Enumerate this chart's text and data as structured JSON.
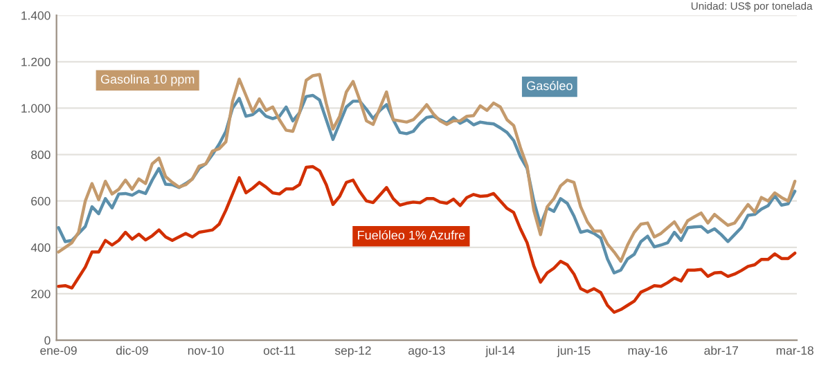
{
  "chart_data": {
    "type": "line",
    "annotations": [
      "Unidad: US$ por tonelada"
    ],
    "categories": [
      "ene-09",
      null,
      null,
      null,
      null,
      null,
      null,
      null,
      null,
      null,
      null,
      "dic-09",
      null,
      null,
      null,
      null,
      null,
      null,
      null,
      null,
      null,
      null,
      "nov-10",
      null,
      null,
      null,
      null,
      null,
      null,
      null,
      null,
      null,
      null,
      "oct-11",
      null,
      null,
      null,
      null,
      null,
      null,
      null,
      null,
      null,
      null,
      "sep-12",
      null,
      null,
      null,
      null,
      null,
      null,
      null,
      null,
      null,
      null,
      "ago-13",
      null,
      null,
      null,
      null,
      null,
      null,
      null,
      null,
      null,
      null,
      "jul-14",
      null,
      null,
      null,
      null,
      null,
      null,
      null,
      null,
      null,
      null,
      "jun-15",
      null,
      null,
      null,
      null,
      null,
      null,
      null,
      null,
      null,
      null,
      "may-16",
      null,
      null,
      null,
      null,
      null,
      null,
      null,
      null,
      null,
      null,
      "abr-17",
      null,
      null,
      null,
      null,
      null,
      null,
      null,
      null,
      null,
      null,
      "mar-18"
    ],
    "series": [
      {
        "name": "Gasolina 10 ppm",
        "color": "#c49a6c",
        "values": [
          380,
          400,
          420,
          465,
          600,
          675,
          605,
          685,
          630,
          650,
          690,
          650,
          695,
          675,
          760,
          785,
          705,
          680,
          660,
          670,
          695,
          750,
          760,
          815,
          825,
          855,
          1030,
          1125,
          1055,
          985,
          1040,
          990,
          1005,
          950,
          905,
          900,
          980,
          1120,
          1140,
          1145,
          1020,
          910,
          965,
          1070,
          1115,
          1035,
          945,
          930,
          1000,
          1070,
          950,
          945,
          940,
          950,
          980,
          1015,
          975,
          945,
          930,
          945,
          945,
          965,
          968,
          1010,
          990,
          1022,
          1005,
          950,
          925,
          830,
          750,
          560,
          455,
          575,
          610,
          665,
          690,
          680,
          575,
          510,
          470,
          470,
          415,
          380,
          340,
          410,
          465,
          500,
          505,
          445,
          460,
          485,
          510,
          465,
          515,
          532,
          548,
          505,
          542,
          518,
          495,
          505,
          545,
          585,
          552,
          615,
          600,
          635,
          615,
          600,
          685
        ]
      },
      {
        "name": "Gasóleo",
        "color": "#5b8fab",
        "values": [
          485,
          425,
          430,
          460,
          490,
          575,
          545,
          610,
          570,
          630,
          632,
          625,
          642,
          632,
          690,
          740,
          672,
          670,
          658,
          675,
          695,
          740,
          760,
          800,
          845,
          900,
          1000,
          1042,
          965,
          972,
          995,
          965,
          955,
          965,
          1005,
          945,
          980,
          1050,
          1055,
          1035,
          950,
          865,
          935,
          1005,
          1030,
          1030,
          995,
          955,
          990,
          1015,
          950,
          895,
          890,
          900,
          935,
          960,
          965,
          950,
          935,
          960,
          935,
          950,
          928,
          940,
          935,
          932,
          915,
          895,
          860,
          790,
          740,
          600,
          495,
          570,
          555,
          610,
          590,
          535,
          465,
          472,
          460,
          440,
          350,
          290,
          302,
          350,
          370,
          425,
          448,
          402,
          410,
          420,
          465,
          430,
          485,
          488,
          490,
          465,
          480,
          455,
          425,
          455,
          485,
          538,
          542,
          565,
          580,
          622,
          582,
          588,
          642
        ]
      },
      {
        "name": "Fuelóleo 1% Azufre",
        "color": "#d22f00",
        "values": [
          232,
          235,
          225,
          270,
          315,
          380,
          380,
          430,
          410,
          430,
          465,
          435,
          457,
          432,
          450,
          475,
          445,
          430,
          445,
          460,
          445,
          465,
          470,
          475,
          500,
          560,
          630,
          700,
          635,
          655,
          680,
          660,
          635,
          630,
          652,
          652,
          670,
          745,
          748,
          730,
          670,
          585,
          620,
          680,
          690,
          640,
          600,
          593,
          625,
          658,
          610,
          582,
          590,
          595,
          592,
          610,
          610,
          595,
          590,
          608,
          580,
          615,
          628,
          620,
          622,
          632,
          600,
          568,
          550,
          480,
          420,
          320,
          250,
          290,
          310,
          340,
          325,
          285,
          222,
          208,
          222,
          205,
          150,
          120,
          132,
          150,
          168,
          207,
          220,
          235,
          232,
          248,
          268,
          255,
          302,
          302,
          305,
          275,
          290,
          292,
          275,
          285,
          300,
          318,
          325,
          348,
          348,
          372,
          352,
          352,
          375
        ]
      }
    ],
    "ylim": [
      0,
      1400
    ],
    "yticks": [
      0,
      200,
      400,
      600,
      800,
      {
        "value": 1000,
        "label": "1.000"
      },
      {
        "value": 1200,
        "label": "1.200"
      },
      {
        "value": 1400,
        "label": "1.400"
      }
    ],
    "grid": "y",
    "legend": false,
    "marker": "none",
    "line_style": "solid"
  }
}
